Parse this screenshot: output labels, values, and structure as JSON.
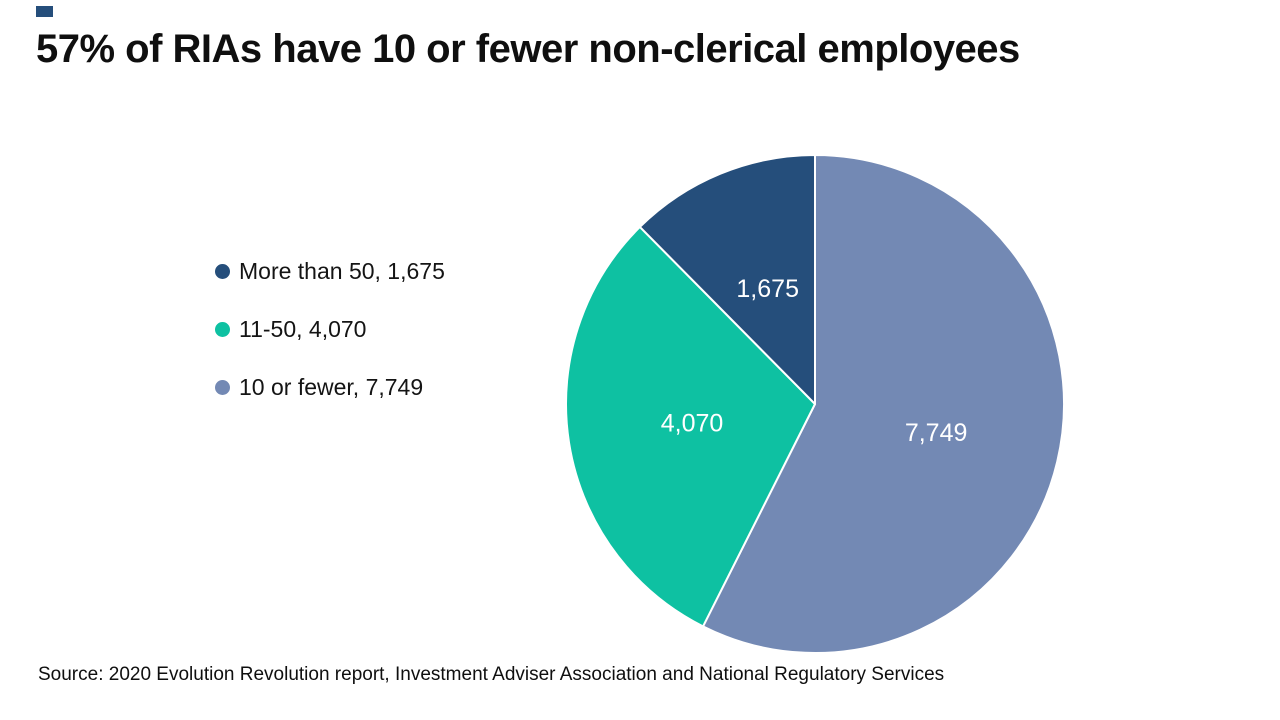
{
  "brand": {
    "accent_color": "#254e7b"
  },
  "title": "57% of RIAs have 10 or fewer non-clerical employees",
  "source": "Source: 2020 Evolution Revolution report, Investment Adviser Association and National Regulatory Services",
  "chart_data": {
    "type": "pie",
    "title": "57% of RIAs have 10 or fewer non-clerical employees",
    "total": 13494,
    "slices": [
      {
        "label": "More than 50",
        "value": 1675,
        "value_display": "1,675",
        "legend_label": "More than 50, 1,675",
        "color": "#254e7b"
      },
      {
        "label": "11-50",
        "value": 4070,
        "value_display": "4,070",
        "legend_label": "11-50, 4,070",
        "color": "#0ec1a2"
      },
      {
        "label": "10 or fewer",
        "value": 7749,
        "value_display": "7,749",
        "legend_label": "10 or fewer, 7,749",
        "color": "#7389b4"
      }
    ],
    "draw_order_clockwise_from_top": [
      2,
      1,
      0
    ],
    "start_angle": "12 o'clock",
    "direction": "clockwise",
    "legend_position": "left",
    "data_labels": "inside-white"
  }
}
